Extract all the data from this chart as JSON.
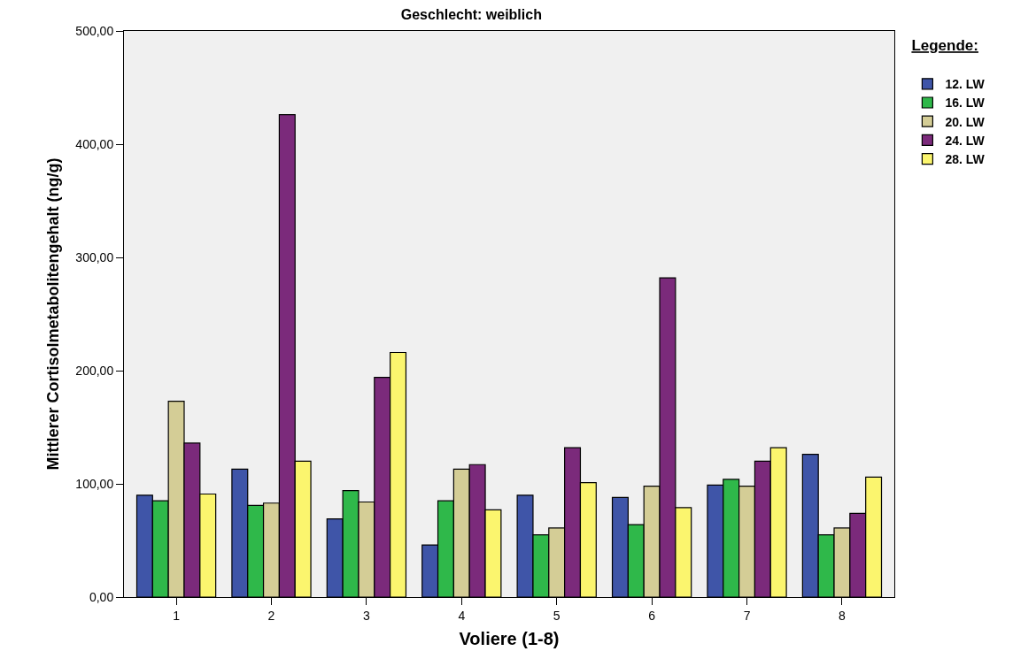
{
  "chart_data": {
    "type": "bar",
    "title": "Geschlecht: weiblich",
    "xlabel": "Voliere (1-8)",
    "ylabel": "Mittlerer Cortisolmetabolitengehalt (ng/g)",
    "legend_title": "Legende:",
    "categories": [
      "1",
      "2",
      "3",
      "4",
      "5",
      "6",
      "7",
      "8"
    ],
    "series": [
      {
        "name": "12. LW",
        "color": "#3f55a8",
        "values": [
          90,
          113,
          69,
          46,
          90,
          88,
          99,
          126
        ]
      },
      {
        "name": "16. LW",
        "color": "#2fb84a",
        "values": [
          85,
          81,
          94,
          85,
          55,
          64,
          104,
          55
        ]
      },
      {
        "name": "20. LW",
        "color": "#d4cd96",
        "values": [
          173,
          83,
          84,
          113,
          61,
          98,
          98,
          61
        ]
      },
      {
        "name": "24. LW",
        "color": "#7b2a7b",
        "values": [
          136,
          426,
          194,
          117,
          132,
          282,
          120,
          74
        ]
      },
      {
        "name": "28. LW",
        "color": "#fbf56e",
        "values": [
          91,
          120,
          216,
          77,
          101,
          79,
          132,
          106
        ]
      }
    ],
    "ylim": [
      0,
      500
    ],
    "yticks": [
      {
        "value": 0,
        "label": "0,00"
      },
      {
        "value": 100,
        "label": "100,00"
      },
      {
        "value": 200,
        "label": "200,00"
      },
      {
        "value": 300,
        "label": "300,00"
      },
      {
        "value": 400,
        "label": "400,00"
      },
      {
        "value": 500,
        "label": "500,00"
      }
    ],
    "grid": false,
    "legend": "top right"
  }
}
